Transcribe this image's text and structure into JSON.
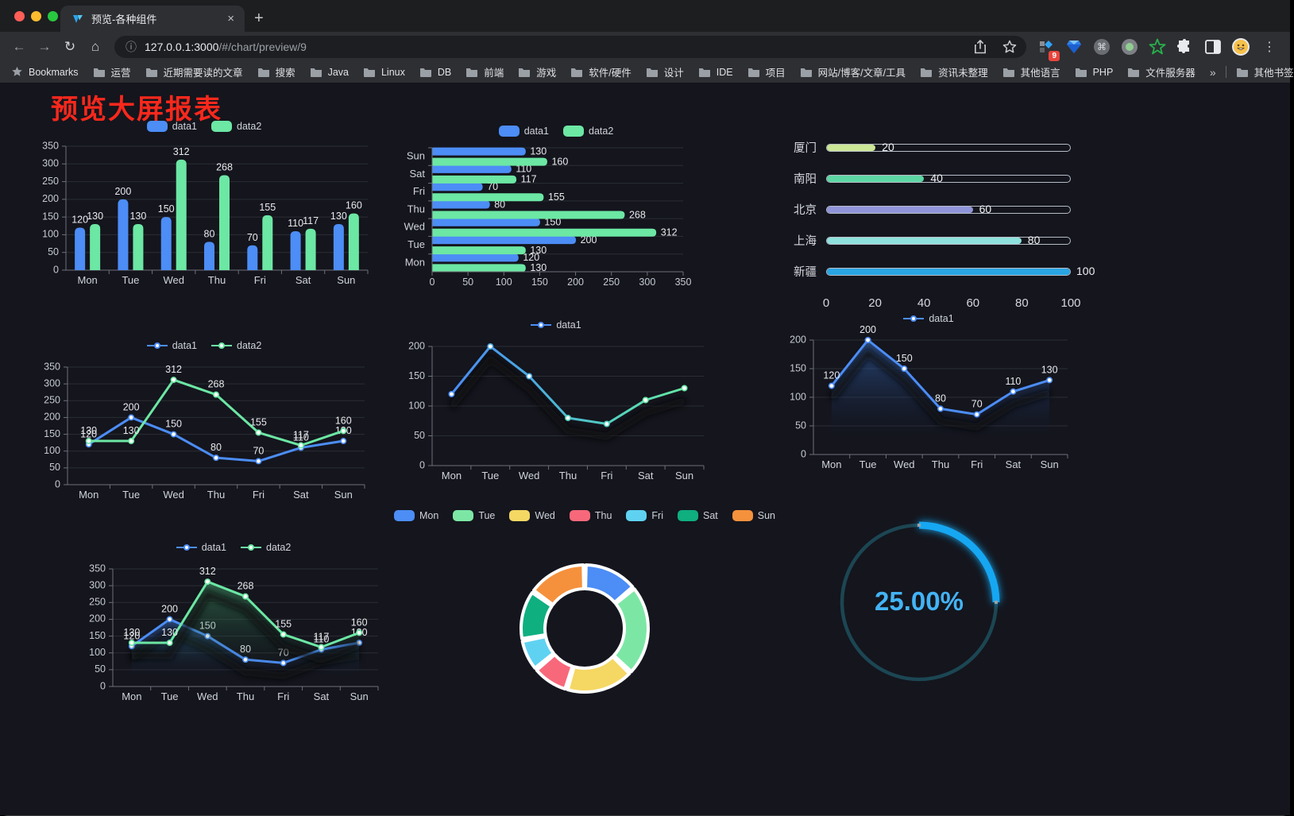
{
  "browser": {
    "tab": {
      "title": "预览-各种组件",
      "close_glyph": "×",
      "newtab_glyph": "+"
    },
    "toolbar": {
      "back_glyph": "←",
      "forward_glyph": "→",
      "reload_glyph": "↻",
      "home_glyph": "⌂",
      "info_glyph": "ⓘ",
      "url_host": "127.0.0.1:3000",
      "url_path": "/#/chart/preview/9",
      "extension_badge": "9",
      "menu_glyph": "⋮"
    },
    "bookmarks": {
      "label": "Bookmarks",
      "items": [
        "运营",
        "近期需要读的文章",
        "搜索",
        "Java",
        "Linux",
        "DB",
        "前端",
        "游戏",
        "软件/硬件",
        "设计",
        "IDE",
        "项目",
        "网站/博客/文章/工具",
        "资讯未整理",
        "其他语言",
        "PHP",
        "文件服务器"
      ],
      "overflow_glyph": "»",
      "other_label": "其他书签"
    }
  },
  "page": {
    "title": "预览大屏报表",
    "title_color": "#f8281c",
    "background": "#14151d"
  },
  "palette": {
    "data1_blue": "#4C8DF6",
    "data2_green": "#6CE7A4",
    "grid": "#2b2e35",
    "axis": "#6E7079",
    "tick_text": "#c6cad2",
    "value_label": "#e8eaee"
  },
  "chart_data": [
    {
      "type": "bar",
      "categories": [
        "Mon",
        "Tue",
        "Wed",
        "Thu",
        "Fri",
        "Sat",
        "Sun"
      ],
      "series": [
        {
          "name": "data1",
          "color": "#4C8DF6",
          "values": [
            120,
            200,
            150,
            80,
            70,
            110,
            130
          ]
        },
        {
          "name": "data2",
          "color": "#6CE7A4",
          "values": [
            130,
            130,
            312,
            268,
            155,
            117,
            160
          ]
        }
      ],
      "ylim": [
        0,
        350
      ],
      "ystep": 50,
      "labels": true,
      "legend_position": "top"
    },
    {
      "type": "hbar",
      "categories": [
        "Mon",
        "Tue",
        "Wed",
        "Thu",
        "Fri",
        "Sat",
        "Sun"
      ],
      "series": [
        {
          "name": "data1",
          "color": "#4C8DF6",
          "values": [
            120,
            200,
            150,
            80,
            70,
            110,
            130
          ]
        },
        {
          "name": "data2",
          "color": "#6CE7A4",
          "values": [
            130,
            130,
            312,
            268,
            155,
            117,
            160
          ]
        }
      ],
      "xlim": [
        0,
        350
      ],
      "xstep": 50,
      "labels": true,
      "legend_position": "top"
    },
    {
      "type": "capsule",
      "items": [
        {
          "label": "厦门",
          "value": 20,
          "color": "#cbe696"
        },
        {
          "label": "南阳",
          "value": 40,
          "color": "#5dd6a4"
        },
        {
          "label": "北京",
          "value": 60,
          "color": "#9095da"
        },
        {
          "label": "上海",
          "value": 80,
          "color": "#8fe1dd"
        },
        {
          "label": "新疆",
          "value": 100,
          "color": "#29a5e3"
        }
      ],
      "xticks": [
        0,
        20,
        40,
        60,
        80,
        100
      ],
      "xlim": [
        0,
        100
      ]
    },
    {
      "type": "line",
      "categories": [
        "Mon",
        "Tue",
        "Wed",
        "Thu",
        "Fri",
        "Sat",
        "Sun"
      ],
      "series": [
        {
          "name": "data1",
          "color": "#4C8DF6",
          "values": [
            120,
            200,
            150,
            80,
            70,
            110,
            130
          ]
        },
        {
          "name": "data2",
          "color": "#6CE7A4",
          "values": [
            130,
            130,
            312,
            268,
            155,
            117,
            160
          ]
        }
      ],
      "ylim": [
        0,
        350
      ],
      "ystep": 50,
      "labels": true,
      "legend_position": "top"
    },
    {
      "type": "line",
      "categories": [
        "Mon",
        "Tue",
        "Wed",
        "Thu",
        "Fri",
        "Sat",
        "Sun"
      ],
      "series": [
        {
          "name": "data1",
          "color": "#4C8DF6",
          "gradient": [
            "#4a8cf5",
            "#4aa9e0",
            "#52cfc0",
            "#66e8a3"
          ],
          "values": [
            120,
            200,
            150,
            80,
            70,
            110,
            130
          ]
        }
      ],
      "ylim": [
        0,
        200
      ],
      "ystep": 50,
      "labels": false,
      "shadow": true,
      "legend_position": "top"
    },
    {
      "type": "line",
      "categories": [
        "Mon",
        "Tue",
        "Wed",
        "Thu",
        "Fri",
        "Sat",
        "Sun"
      ],
      "series": [
        {
          "name": "data1",
          "color": "#4C8DF6",
          "area": [
            "rgba(58,110,190,0.6)",
            "rgba(20,40,80,0)"
          ],
          "values": [
            120,
            200,
            150,
            80,
            70,
            110,
            130
          ]
        }
      ],
      "ylim": [
        0,
        200
      ],
      "ystep": 50,
      "labels": true,
      "shadow": true,
      "legend_position": "top"
    },
    {
      "type": "line",
      "categories": [
        "Mon",
        "Tue",
        "Wed",
        "Thu",
        "Fri",
        "Sat",
        "Sun"
      ],
      "series": [
        {
          "name": "data1",
          "color": "#4C8DF6",
          "area": [
            "rgba(58,110,190,0.55)",
            "rgba(20,40,80,0)"
          ],
          "values": [
            120,
            200,
            150,
            80,
            70,
            110,
            130
          ]
        },
        {
          "name": "data2",
          "color": "#6CE7A4",
          "area": [
            "rgba(70,160,110,0.55)",
            "rgba(20,60,40,0)"
          ],
          "values": [
            130,
            130,
            312,
            268,
            155,
            117,
            160
          ]
        }
      ],
      "ylim": [
        0,
        350
      ],
      "ystep": 50,
      "labels": true,
      "shadow": true,
      "legend_position": "top"
    },
    {
      "type": "pie",
      "donut": true,
      "items": [
        {
          "label": "Mon",
          "value": 120,
          "color": "#4C8DF6"
        },
        {
          "label": "Tue",
          "value": 200,
          "color": "#7CE7A5"
        },
        {
          "label": "Wed",
          "value": 150,
          "color": "#F5D763"
        },
        {
          "label": "Thu",
          "value": 80,
          "color": "#F8687B"
        },
        {
          "label": "Fri",
          "value": 70,
          "color": "#5FD2F2"
        },
        {
          "label": "Sat",
          "value": 110,
          "color": "#0FAF80"
        },
        {
          "label": "Sun",
          "value": 130,
          "color": "#F5913C"
        }
      ],
      "legend_position": "top"
    },
    {
      "type": "gauge",
      "value": 25,
      "label": "25.00%",
      "arc_color": "#17a7f2",
      "track_color": "#1c4653",
      "text_color": "#43b3f5"
    }
  ]
}
